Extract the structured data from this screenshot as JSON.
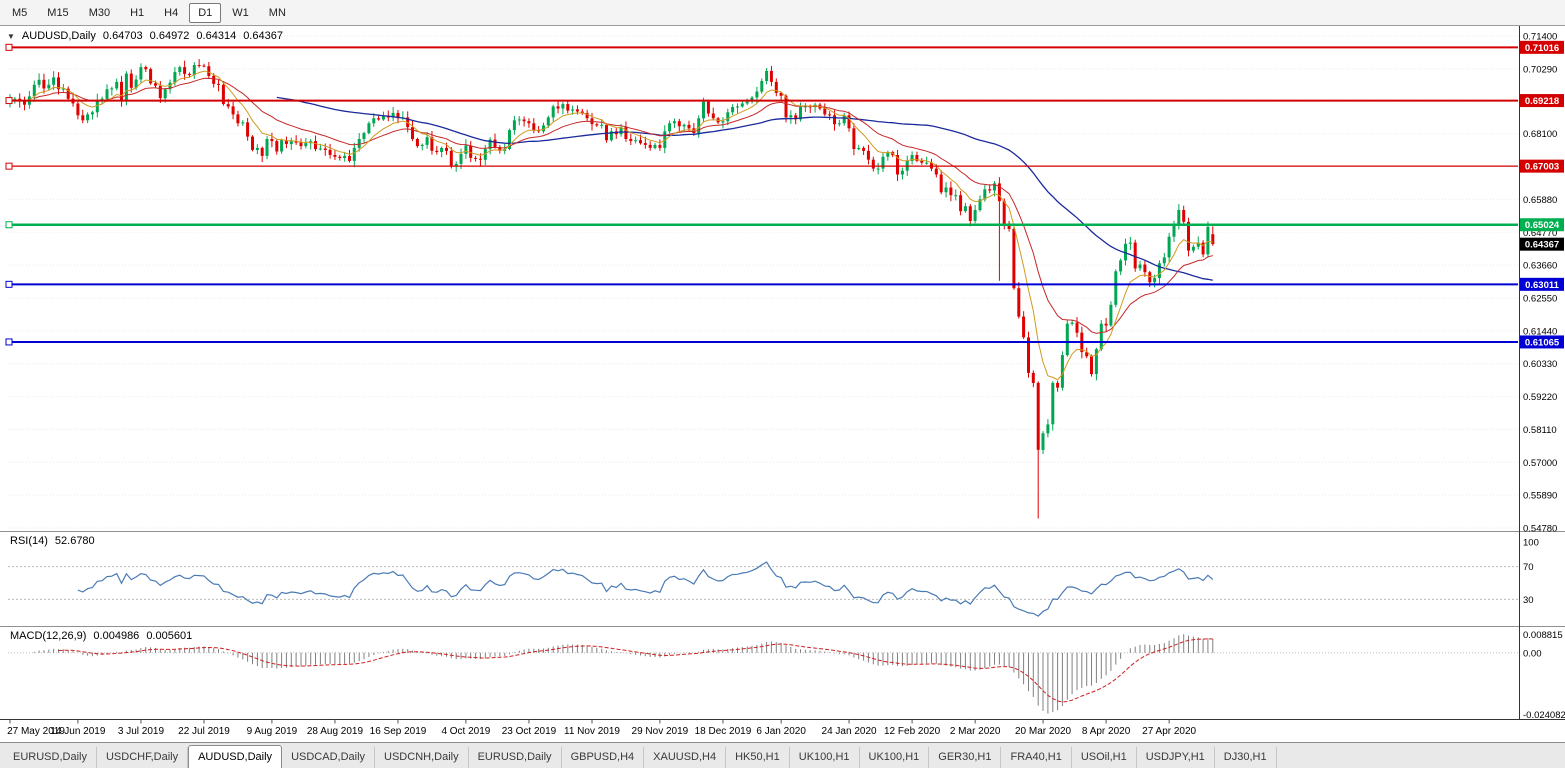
{
  "toolbar": {
    "timeframes": [
      "M5",
      "M15",
      "M30",
      "H1",
      "H4",
      "D1",
      "W1",
      "MN"
    ],
    "active": "D1"
  },
  "indicators": {
    "rsi": {
      "label": "RSI(14)",
      "value": "52.6780",
      "scale_labels": [
        "100",
        "70",
        "30"
      ],
      "upper_level": 70,
      "lower_level": 30,
      "color": "#4a7ab5"
    },
    "macd": {
      "label": "MACD(12,26,9)",
      "value1": "0.004986",
      "value2": "0.005601",
      "scale_top": "0.008815",
      "scale_zero": "0.00",
      "scale_bottom": "-0.024082",
      "bar_color": "#808080",
      "signal_color": "#d02020"
    }
  },
  "tabs": {
    "items": [
      "EURUSD,Daily",
      "USDCHF,Daily",
      "AUDUSD,Daily",
      "USDCAD,Daily",
      "USDCNH,Daily",
      "EURUSD,Daily",
      "GBPUSD,H4",
      "XAUUSD,H4",
      "HK50,H1",
      "UK100,H1",
      "UK100,H1",
      "GER30,H1",
      "FRA40,H1",
      "USOil,H1",
      "USDJPY,H1",
      "DJ30,H1"
    ],
    "active_index": 2
  },
  "chart_data": {
    "type": "candlestick",
    "title": {
      "symbol": "AUDUSD,Daily",
      "open": "0.64703",
      "high": "0.64972",
      "low": "0.64314",
      "close": "0.64367"
    },
    "current_price": "0.64367",
    "y_ticks": [
      "0.71400",
      "0.70290",
      "0.69180",
      "0.68100",
      "0.66990",
      "0.65880",
      "0.64770",
      "0.63660",
      "0.62550",
      "0.61440",
      "0.60330",
      "0.59220",
      "0.58110",
      "0.57000",
      "0.55890",
      "0.54780"
    ],
    "levels": [
      {
        "label": "0.71016",
        "value": 0.71016,
        "color": "#d40000",
        "width": 2
      },
      {
        "label": "0.69218",
        "value": 0.69218,
        "color": "#d40000",
        "width": 2
      },
      {
        "label": "0.67003",
        "value": 0.67003,
        "color": "#d40000",
        "width": 1.2
      },
      {
        "label": "0.65024",
        "value": 0.65024,
        "color": "#00b050",
        "width": 2.5
      },
      {
        "label": "0.63011",
        "value": 0.63011,
        "color": "#0000d4",
        "width": 2
      },
      {
        "label": "0.61065",
        "value": 0.61065,
        "color": "#0000d4",
        "width": 2
      }
    ],
    "candle_colors": {
      "up": "#00a651",
      "down": "#e00000"
    },
    "moving_averages": [
      {
        "name": "fast",
        "period": 8,
        "type": "ema",
        "color": "#d19a1e"
      },
      {
        "name": "medium",
        "period": 20,
        "type": "ema",
        "color": "#c62828"
      },
      {
        "name": "slow",
        "period": 55,
        "type": "sma",
        "color": "#1a2a9c"
      }
    ],
    "x_labels": [
      {
        "text": "27 May 2019",
        "i": 0
      },
      {
        "text": "14 Jun 2019",
        "i": 14
      },
      {
        "text": "3 Jul 2019",
        "i": 27
      },
      {
        "text": "22 Jul 2019",
        "i": 40
      },
      {
        "text": "9 Aug 2019",
        "i": 54
      },
      {
        "text": "28 Aug 2019",
        "i": 67
      },
      {
        "text": "16 Sep 2019",
        "i": 80
      },
      {
        "text": "4 Oct 2019",
        "i": 94
      },
      {
        "text": "23 Oct 2019",
        "i": 107
      },
      {
        "text": "11 Nov 2019",
        "i": 120
      },
      {
        "text": "29 Nov 2019",
        "i": 134
      },
      {
        "text": "18 Dec 2019",
        "i": 147
      },
      {
        "text": "6 Jan 2020",
        "i": 159
      },
      {
        "text": "24 Jan 2020",
        "i": 173
      },
      {
        "text": "12 Feb 2020",
        "i": 186
      },
      {
        "text": "2 Mar 2020",
        "i": 199
      },
      {
        "text": "20 Mar 2020",
        "i": 213
      },
      {
        "text": "8 Apr 2020",
        "i": 226
      },
      {
        "text": "27 Apr 2020",
        "i": 239
      }
    ],
    "closes": [
      0.6925,
      0.6928,
      0.692,
      0.6908,
      0.6936,
      0.6975,
      0.6992,
      0.6963,
      0.6975,
      0.7,
      0.696,
      0.6962,
      0.6928,
      0.6912,
      0.6872,
      0.6855,
      0.6875,
      0.6882,
      0.6924,
      0.6928,
      0.696,
      0.6963,
      0.6985,
      0.6922,
      0.7013,
      0.6965,
      0.6993,
      0.7035,
      0.7028,
      0.698,
      0.6972,
      0.693,
      0.696,
      0.6982,
      0.7018,
      0.7035,
      0.7012,
      0.7008,
      0.7042,
      0.704,
      0.7038,
      0.7005,
      0.6978,
      0.6975,
      0.691,
      0.6902,
      0.6875,
      0.6845,
      0.6848,
      0.68,
      0.6755,
      0.6762,
      0.6735,
      0.6792,
      0.6785,
      0.675,
      0.6788,
      0.6775,
      0.6785,
      0.678,
      0.6768,
      0.6778,
      0.6785,
      0.6758,
      0.676,
      0.6755,
      0.6738,
      0.6732,
      0.6728,
      0.6735,
      0.6718,
      0.6762,
      0.6792,
      0.6812,
      0.6845,
      0.6862,
      0.6858,
      0.6868,
      0.6865,
      0.688,
      0.6862,
      0.6865,
      0.6832,
      0.6792,
      0.6768,
      0.6772,
      0.6798,
      0.6752,
      0.6748,
      0.6762,
      0.6752,
      0.6702,
      0.6708,
      0.6742,
      0.677,
      0.6728,
      0.6725,
      0.6722,
      0.6758,
      0.679,
      0.6765,
      0.6752,
      0.6758,
      0.6822,
      0.6855,
      0.6858,
      0.6852,
      0.6845,
      0.6822,
      0.6818,
      0.6838,
      0.6865,
      0.6902,
      0.6895,
      0.691,
      0.6888,
      0.6892,
      0.6885,
      0.688,
      0.6862,
      0.6842,
      0.6838,
      0.684,
      0.6788,
      0.6818,
      0.6808,
      0.6832,
      0.6792,
      0.6785,
      0.6788,
      0.6778,
      0.6772,
      0.6762,
      0.6772,
      0.6762,
      0.6818,
      0.6845,
      0.6852,
      0.6835,
      0.684,
      0.6828,
      0.6812,
      0.6862,
      0.6918,
      0.6878,
      0.6862,
      0.6848,
      0.6852,
      0.6882,
      0.69,
      0.6902,
      0.6912,
      0.6918,
      0.6932,
      0.6952,
      0.6988,
      0.7022,
      0.6985,
      0.6948,
      0.6938,
      0.6865,
      0.6872,
      0.6858,
      0.69,
      0.6902,
      0.69,
      0.6908,
      0.6895,
      0.6875,
      0.6872,
      0.6842,
      0.6845,
      0.6872,
      0.6828,
      0.6758,
      0.6762,
      0.6752,
      0.6722,
      0.6692,
      0.6692,
      0.6732,
      0.6748,
      0.6738,
      0.6672,
      0.6685,
      0.6718,
      0.6738,
      0.6718,
      0.6712,
      0.6712,
      0.6692,
      0.6672,
      0.6612,
      0.6628,
      0.6602,
      0.6602,
      0.6548,
      0.6565,
      0.6515,
      0.6552,
      0.6588,
      0.6622,
      0.6618,
      0.6642,
      0.6582,
      0.6502,
      0.6488,
      0.6288,
      0.6192,
      0.6122,
      0.6002,
      0.5968,
      0.5742,
      0.5798,
      0.5828,
      0.5968,
      0.5952,
      0.6062,
      0.6168,
      0.6172,
      0.6138,
      0.6072,
      0.6058,
      0.5998,
      0.6082,
      0.6168,
      0.6162,
      0.6232,
      0.6345,
      0.6382,
      0.6438,
      0.6442,
      0.6355,
      0.6368,
      0.6342,
      0.6308,
      0.6322,
      0.6372,
      0.6392,
      0.6462,
      0.6498,
      0.6552,
      0.6512,
      0.6415,
      0.6428,
      0.6442,
      0.6402,
      0.6495,
      0.64367
    ],
    "low_overrides": {
      "204": 0.6313,
      "212": 0.551
    },
    "high_overrides": {
      "241": 0.6572
    },
    "last_ohlc": {
      "o": 0.64703,
      "h": 0.64972,
      "l": 0.64314,
      "c": 0.64367
    }
  }
}
